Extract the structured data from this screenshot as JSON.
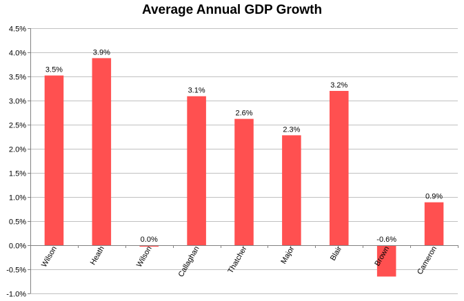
{
  "chart_data": {
    "type": "bar",
    "title": "Average Annual GDP Growth",
    "xlabel": "",
    "ylabel": "",
    "categories": [
      "Wilson",
      "Heath",
      "Wilson",
      "Callaghan",
      "Thatcher",
      "Major",
      "Blair",
      "Brown",
      "Cameron"
    ],
    "values": [
      3.5,
      3.9,
      0.0,
      3.1,
      2.6,
      2.3,
      3.2,
      -0.6,
      0.9
    ],
    "plotted_values": [
      3.52,
      3.88,
      -0.03,
      3.09,
      2.62,
      2.28,
      3.2,
      -0.65,
      0.89
    ],
    "data_labels": [
      "3.5%",
      "3.9%",
      "0.0%",
      "3.1%",
      "2.6%",
      "2.3%",
      "3.2%",
      "-0.6%",
      "0.9%"
    ],
    "ylim": [
      -1.0,
      4.5
    ],
    "yticks": [
      -1.0,
      -0.5,
      0.0,
      0.5,
      1.0,
      1.5,
      2.0,
      2.5,
      3.0,
      3.5,
      4.0,
      4.5
    ],
    "ytick_labels": [
      "-1.0%",
      "-0.5%",
      "0.0%",
      "0.5%",
      "1.0%",
      "1.5%",
      "2.0%",
      "2.5%",
      "3.0%",
      "3.5%",
      "4.0%",
      "4.5%"
    ],
    "grid": true,
    "legend": "none",
    "bar_color": "#ff5050"
  }
}
